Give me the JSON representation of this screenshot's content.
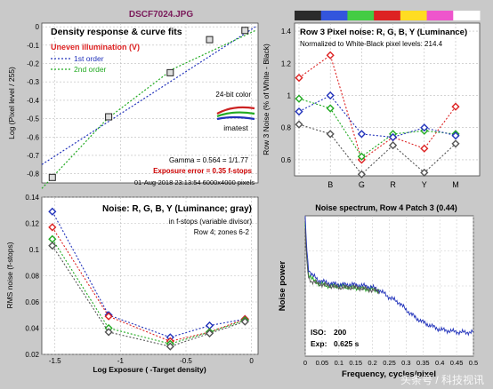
{
  "file_title": "DSCF7024.JPG",
  "watermark": "头条号 / 科技视讯",
  "colors": {
    "red": "#dd2222",
    "green": "#22aa22",
    "blue": "#2233bb",
    "gray": "#555555",
    "black": "#000000",
    "title_purple": "#7a1a5a",
    "annotation_red": "#cc0000"
  },
  "chart_data": [
    {
      "id": "density",
      "type": "scatter",
      "title": "Density response & curve fits",
      "warning": "Uneven illumination (V)",
      "legend": [
        "1st order",
        "2nd order"
      ],
      "annotation_color_mode": "24-bit color",
      "logo_text": "imatest",
      "gamma_text": "Gamma = 0.564 = 1/1.77",
      "exposure_text": "Exposure error = 0.35 f-stops",
      "footer_text": "01-Aug-2018 23:13:54   6000x4000 pixels",
      "xlabel": "",
      "ylabel": "Log (Pixel level / 255)",
      "xlim": [
        -1.6,
        0.05
      ],
      "ylim": [
        -0.85,
        0.02
      ],
      "xticks": [
        -1.5,
        -1,
        -0.5,
        0
      ],
      "yticks": [
        -0.8,
        -0.7,
        -0.6,
        -0.5,
        -0.4,
        -0.3,
        -0.2,
        -0.1,
        0
      ],
      "xticklabels": [
        "",
        "",
        "",
        ""
      ],
      "yticklabels": [
        "-0.8",
        "-0.7",
        "-0.6",
        "-0.5",
        "-0.4",
        "-0.3",
        "-0.2",
        "-0.1",
        "0"
      ],
      "points": [
        {
          "x": -1.52,
          "y": -0.82
        },
        {
          "x": -1.09,
          "y": -0.49
        },
        {
          "x": -0.62,
          "y": -0.25
        },
        {
          "x": -0.32,
          "y": -0.07
        },
        {
          "x": -0.05,
          "y": -0.02
        }
      ],
      "fit_1st": [
        {
          "x": -1.6,
          "y": -0.75
        },
        {
          "x": 0.03,
          "y": 0.0
        }
      ],
      "fit_2nd": [
        {
          "x": -1.6,
          "y": -0.88
        },
        {
          "x": -1.1,
          "y": -0.5
        },
        {
          "x": -0.6,
          "y": -0.23
        },
        {
          "x": 0.03,
          "y": -0.02
        }
      ]
    },
    {
      "id": "row3",
      "type": "line",
      "title": "Row 3 Pixel noise: R, G, B, Y (Luminance)",
      "note": "Normalized to White-Black pixel levels: 214.4",
      "ylabel": "Row 3 Noise (% of White - Black)",
      "categories": [
        "",
        "B",
        "G",
        "R",
        "Y",
        "M"
      ],
      "color_strip": [
        "#2b2b2b",
        "#3355dd",
        "#44cc44",
        "#dd2222",
        "#ffdd22",
        "#ee55cc",
        "#ffffff"
      ],
      "ylim": [
        0.5,
        1.45
      ],
      "yticks": [
        0.6,
        0.8,
        1.0,
        1.2,
        1.4
      ],
      "yticklabels": [
        "0.6",
        "0.8",
        "1",
        "1.2",
        "1.4"
      ],
      "series": [
        {
          "color": "red",
          "values": [
            1.11,
            1.25,
            0.6,
            0.74,
            0.67,
            0.93
          ]
        },
        {
          "color": "green",
          "values": [
            0.98,
            0.92,
            0.62,
            0.76,
            0.78,
            0.76
          ]
        },
        {
          "color": "blue",
          "values": [
            0.9,
            1.0,
            0.76,
            0.74,
            0.8,
            0.75
          ]
        },
        {
          "color": "gray",
          "values": [
            0.82,
            0.76,
            0.51,
            0.69,
            0.52,
            0.7
          ]
        }
      ]
    },
    {
      "id": "noise",
      "type": "line",
      "title": "Noise: R, G, B, Y (Luminance; gray)",
      "subtitle": "in f-stops (variable divisor)",
      "row_text": "Row 4;  zones 6-2",
      "xlabel": "Log Exposure ( -Target density)",
      "ylabel": "RMS noise (f-stops)",
      "xlim": [
        -1.6,
        0.05
      ],
      "ylim": [
        0.02,
        0.14
      ],
      "xticks": [
        -1.5,
        -1,
        -0.5,
        0
      ],
      "xticklabels": [
        "-1.5",
        "-1",
        "-0.5",
        "0"
      ],
      "yticks": [
        0.02,
        0.04,
        0.06,
        0.08,
        0.1,
        0.12,
        0.14
      ],
      "yticklabels": [
        "0.02",
        "0.04",
        "0.06",
        "0.08",
        "0.1",
        "0.12",
        "0.14"
      ],
      "x": [
        -1.52,
        -1.09,
        -0.62,
        -0.32,
        -0.05
      ],
      "series": [
        {
          "color": "blue",
          "values": [
            0.129,
            0.05,
            0.033,
            0.042,
            0.047
          ]
        },
        {
          "color": "red",
          "values": [
            0.117,
            0.049,
            0.03,
            0.037,
            0.047
          ]
        },
        {
          "color": "green",
          "values": [
            0.108,
            0.04,
            0.028,
            0.037,
            0.046
          ]
        },
        {
          "color": "gray",
          "values": [
            0.103,
            0.037,
            0.026,
            0.036,
            0.045
          ]
        }
      ]
    },
    {
      "id": "spectrum",
      "type": "line",
      "title": "Noise spectrum, Row 4 Patch 3 (0.44)",
      "xlabel": "Frequency, cycles/pixel",
      "ylabel": "Noise power",
      "iso_label": "ISO:",
      "iso_value": "200",
      "exp_label": "Exp:",
      "exp_value": "0.625 s",
      "xlim": [
        0,
        0.5
      ],
      "ylim": [
        0,
        1.0
      ],
      "xticks": [
        0,
        0.05,
        0.1,
        0.15,
        0.2,
        0.25,
        0.3,
        0.35,
        0.4,
        0.45,
        0.5
      ],
      "xticklabels": [
        "0",
        "0.05",
        "0.1",
        "0.15",
        "0.2",
        "0.25",
        "0.3",
        "0.35",
        "0.4",
        "0.45",
        "0.5"
      ],
      "series": [
        {
          "color": "green",
          "x": [
            0.0,
            0.005,
            0.01,
            0.02,
            0.04,
            0.07,
            0.1,
            0.14,
            0.18,
            0.22
          ],
          "values": [
            0.95,
            0.7,
            0.58,
            0.55,
            0.52,
            0.5,
            0.5,
            0.49,
            0.48,
            0.47
          ]
        },
        {
          "color": "blue",
          "x": [
            0.0,
            0.005,
            0.01,
            0.02,
            0.04,
            0.07,
            0.1,
            0.14,
            0.18,
            0.2,
            0.22,
            0.25,
            0.28,
            0.3,
            0.33,
            0.36,
            0.4,
            0.43,
            0.46,
            0.5
          ],
          "values": [
            0.98,
            0.75,
            0.62,
            0.58,
            0.54,
            0.52,
            0.51,
            0.51,
            0.5,
            0.49,
            0.47,
            0.42,
            0.38,
            0.33,
            0.27,
            0.23,
            0.19,
            0.18,
            0.17,
            0.17
          ]
        },
        {
          "color": "gray",
          "x": [
            0.0,
            0.005,
            0.01,
            0.02,
            0.05,
            0.1,
            0.15,
            0.2,
            0.22
          ],
          "values": [
            0.9,
            0.66,
            0.56,
            0.53,
            0.51,
            0.49,
            0.49,
            0.47,
            0.46
          ]
        }
      ]
    }
  ]
}
